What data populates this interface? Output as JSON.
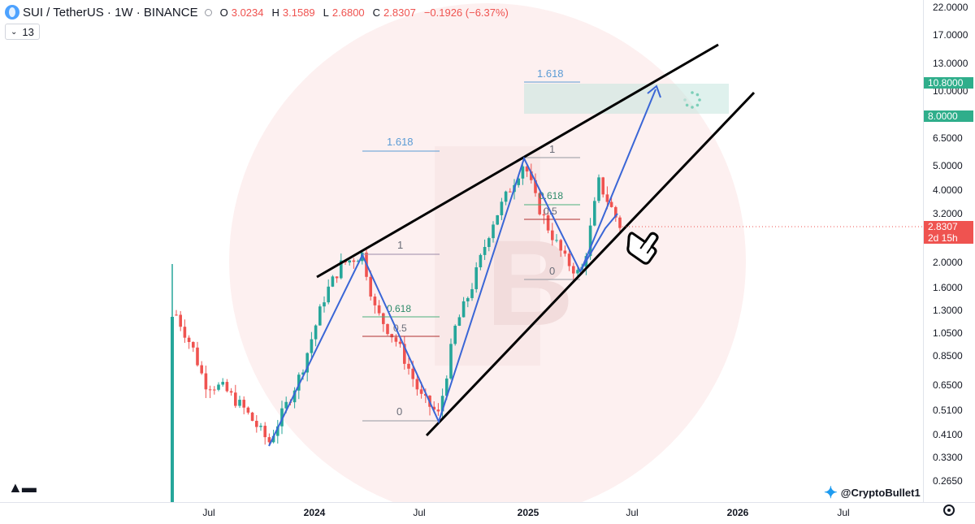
{
  "header": {
    "symbol": "SUI / TetherUS · 1W · BINANCE",
    "open_label": "O",
    "open": "3.0234",
    "high_label": "H",
    "high": "3.1589",
    "low_label": "L",
    "low": "2.6800",
    "close_label": "C",
    "close": "2.8307",
    "change": "−0.1926 (−6.37%)"
  },
  "studies": {
    "count": "13"
  },
  "y_axis": {
    "ticks": [
      "22.0000",
      "17.0000",
      "13.0000",
      "10.0000",
      "6.5000",
      "5.0000",
      "4.0000",
      "3.2000",
      "2.0000",
      "1.6000",
      "1.3000",
      "1.0500",
      "0.8500",
      "0.6500",
      "0.5100",
      "0.4100",
      "0.3300",
      "0.2650"
    ],
    "badges": [
      {
        "label": "10.8000",
        "color": "#2fae8b"
      },
      {
        "label": "8.0000",
        "color": "#2fae8b"
      }
    ],
    "current_price": "2.8307",
    "countdown": "2d 15h"
  },
  "x_axis": {
    "labels": [
      {
        "text": "Jul",
        "bold": false
      },
      {
        "text": "2024",
        "bold": true
      },
      {
        "text": "Jul",
        "bold": false
      },
      {
        "text": "2025",
        "bold": true
      },
      {
        "text": "Jul",
        "bold": false
      },
      {
        "text": "2026",
        "bold": true
      },
      {
        "text": "Jul",
        "bold": false
      }
    ]
  },
  "watermark": {
    "handle": "@CryptoBullet1"
  },
  "icons": {
    "twitter": "twitter-bird-icon",
    "settings": "gear-icon",
    "logo": "tradingview-logo"
  },
  "chart_data": {
    "type": "candlestick",
    "scale": "log",
    "ylim": [
      0.24,
      23
    ],
    "x": [
      "2023-05",
      "2023-07",
      "2023-10",
      "2024-01",
      "2024-03",
      "2024-05",
      "2024-07",
      "2024-08",
      "2024-10",
      "2024-12",
      "2025-01",
      "2025-03",
      "2025-04",
      "2025-05",
      "2025-06"
    ],
    "close": [
      1.25,
      0.62,
      0.38,
      1.15,
      2.1,
      1.05,
      0.7,
      0.5,
      2.0,
      4.2,
      4.8,
      2.6,
      1.9,
      4.1,
      2.83
    ],
    "colors": {
      "up": "#26a69a",
      "down": "#ef5350"
    },
    "annotations": {
      "fib_levels": [
        {
          "label": "1",
          "value": 2.2
        },
        {
          "label": "0.618",
          "value": 1.21
        },
        {
          "label": "0.5",
          "value": 1.0
        },
        {
          "label": "0",
          "value": 0.48
        },
        {
          "label": "1.618",
          "value": 5.6
        },
        {
          "label": "1",
          "value": 5.3
        },
        {
          "label": "0.618",
          "value": 3.7
        },
        {
          "label": "0.5",
          "value": 3.15
        },
        {
          "label": "0",
          "value": 1.72
        },
        {
          "label": "1.618",
          "value": 11.4
        }
      ],
      "target_zone": [
        8.0,
        10.8
      ]
    }
  }
}
